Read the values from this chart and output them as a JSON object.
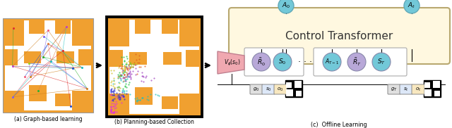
{
  "bg_color": "#ffffff",
  "orange": "#F0A030",
  "dark_border": "#222222",
  "teal": "#72C8D8",
  "teal_light": "#88D8E8",
  "lavender": "#B8A8D8",
  "pink": "#F0A8B0",
  "cream": "#FFF8E0",
  "g0_color": "#e8e8e8",
  "s0_color": "#e0e8f8",
  "o0_color": "#f8e8c8",
  "label_a": "(a) Graph-based learning",
  "label_b": "(b) Planning-based Collection",
  "label_c": "(c)  Offline Learning",
  "ct_title": "Control Transformer",
  "token_R0": "$\\tilde{R}_0$",
  "token_S0": "$S_0$",
  "token_AT1": "$A_{T-1}$",
  "token_RT": "$\\tilde{R}_T$",
  "token_ST": "$S_T$",
  "token_A0": "$A_0$",
  "token_At": "$A_t$",
  "token_Vs0": "$V_\\phi(s_0)$",
  "token_g0": "$g_0$",
  "token_s0": "$s_0$",
  "token_o0": "$o_0$",
  "token_gT": "$g_T$",
  "token_st": "$s_t$",
  "token_ot": "$o_t$"
}
